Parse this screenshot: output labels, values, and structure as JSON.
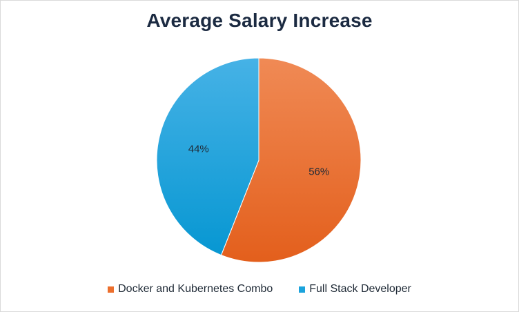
{
  "chart_data": {
    "type": "pie",
    "title": "Average Salary Increase",
    "categories": [
      "Docker and Kubernetes Combo",
      "Full Stack Developer"
    ],
    "values": [
      56,
      44
    ],
    "labels": [
      "56%",
      "44%"
    ],
    "colors": [
      "#ec6f2d",
      "#1ba3dc"
    ],
    "legend_position": "bottom"
  }
}
